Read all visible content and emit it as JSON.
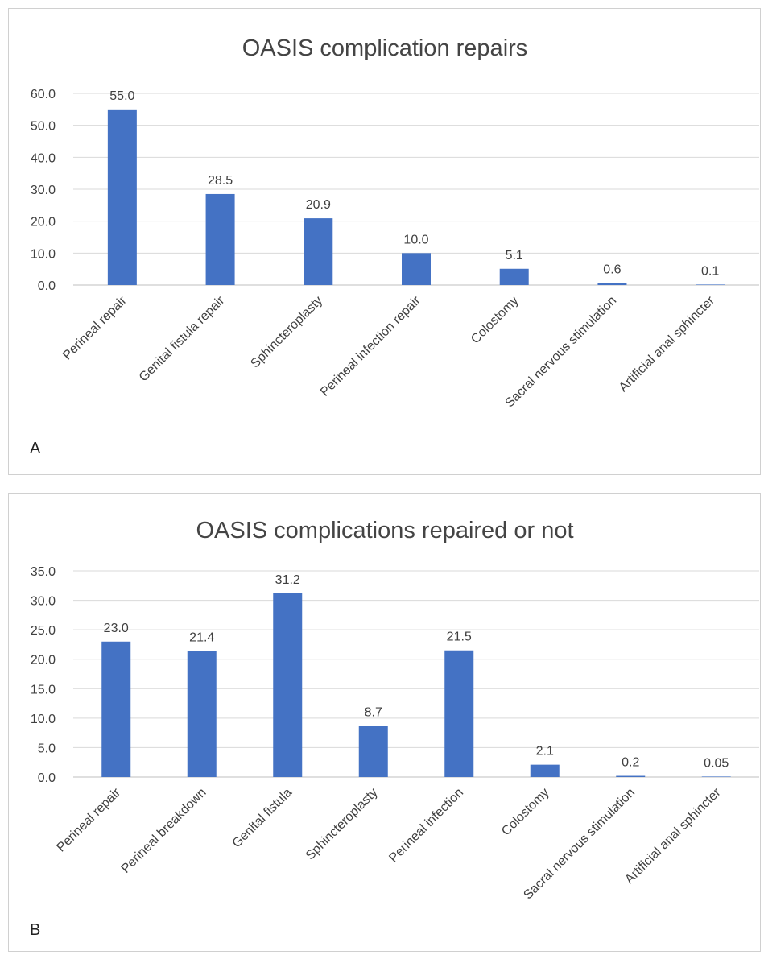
{
  "colors": {
    "bar": "#4472C4",
    "grid": "#d9d9d9",
    "text": "#404040"
  },
  "chart_data": [
    {
      "type": "bar",
      "title": "OASIS complication repairs",
      "panel_label": "A",
      "categories": [
        "Perineal repair",
        "Genital fistula repair",
        "Sphincteroplasty",
        "Perineal infection repair",
        "Colostomy",
        "Sacral nervous stimulation",
        "Artificial anal sphincter"
      ],
      "values": [
        55.0,
        28.5,
        20.9,
        10.0,
        5.1,
        0.6,
        0.1
      ],
      "value_labels": [
        "55.0",
        "28.5",
        "20.9",
        "10.0",
        "5.1",
        "0.6",
        "0.1"
      ],
      "ylim": [
        0,
        60
      ],
      "yticks": [
        0,
        10,
        20,
        30,
        40,
        50,
        60
      ],
      "ytick_labels": [
        "0.0",
        "10.0",
        "20.0",
        "30.0",
        "40.0",
        "50.0",
        "60.0"
      ],
      "grid": true,
      "legend": "none"
    },
    {
      "type": "bar",
      "title": "OASIS complications repaired or not",
      "panel_label": "B",
      "categories": [
        "Perineal repair",
        "Perineal breakdown",
        "Genital fistula",
        "Sphincteroplasty",
        "Perineal infection",
        "Colostomy",
        "Sacral nervous stimulation",
        "Artificial anal sphincter"
      ],
      "values": [
        23.0,
        21.4,
        31.2,
        8.7,
        21.5,
        2.1,
        0.2,
        0.05
      ],
      "value_labels": [
        "23.0",
        "21.4",
        "31.2",
        "8.7",
        "21.5",
        "2.1",
        "0.2",
        "0.05"
      ],
      "ylim": [
        0,
        35
      ],
      "yticks": [
        0,
        5,
        10,
        15,
        20,
        25,
        30,
        35
      ],
      "ytick_labels": [
        "0.0",
        "5.0",
        "10.0",
        "15.0",
        "20.0",
        "25.0",
        "30.0",
        "35.0"
      ],
      "grid": true,
      "legend": "none"
    }
  ]
}
